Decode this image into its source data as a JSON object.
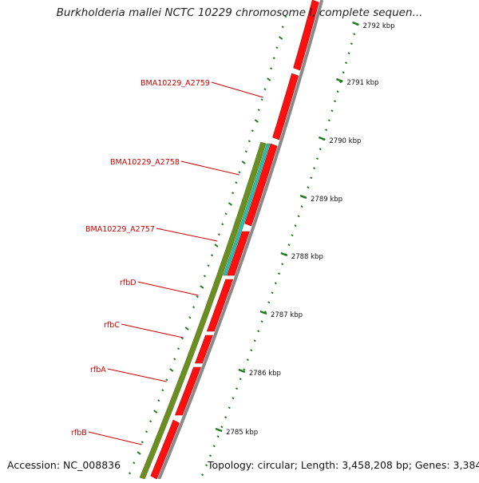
{
  "title": "Burkholderia mallei NCTC 10229 chromosome I, complete sequen...",
  "accession": "Accession: NC_008836",
  "summary": "Topology: circular; Length: 3,458,208 bp; Genes: 3,384",
  "kbp_labels": [
    {
      "kbp": 2792,
      "text": "2792 kbp"
    },
    {
      "kbp": 2791,
      "text": "2791 kbp"
    },
    {
      "kbp": 2790,
      "text": "2790 kbp"
    },
    {
      "kbp": 2789,
      "text": "2789 kbp"
    },
    {
      "kbp": 2788,
      "text": "2788 kbp"
    },
    {
      "kbp": 2787,
      "text": "2787 kbp"
    },
    {
      "kbp": 2786,
      "text": "2786 kbp"
    },
    {
      "kbp": 2785,
      "text": "2785 kbp"
    }
  ],
  "genes": [
    {
      "name": "BMA10229_A2759"
    },
    {
      "name": "BMA10229_A2758"
    },
    {
      "name": "BMA10229_A2757"
    },
    {
      "name": "rfbD"
    },
    {
      "name": "rfbC"
    },
    {
      "name": "rfbA"
    },
    {
      "name": "rfbB"
    }
  ],
  "colors": {
    "cds": "#ff1010",
    "cds_dark": "#b00000",
    "green_band": "#6b8e23",
    "cyan_band": "#20c0c0",
    "ticks": "#1f7a1f",
    "label": "#cc0000",
    "backbone": "#8a8a8a"
  }
}
